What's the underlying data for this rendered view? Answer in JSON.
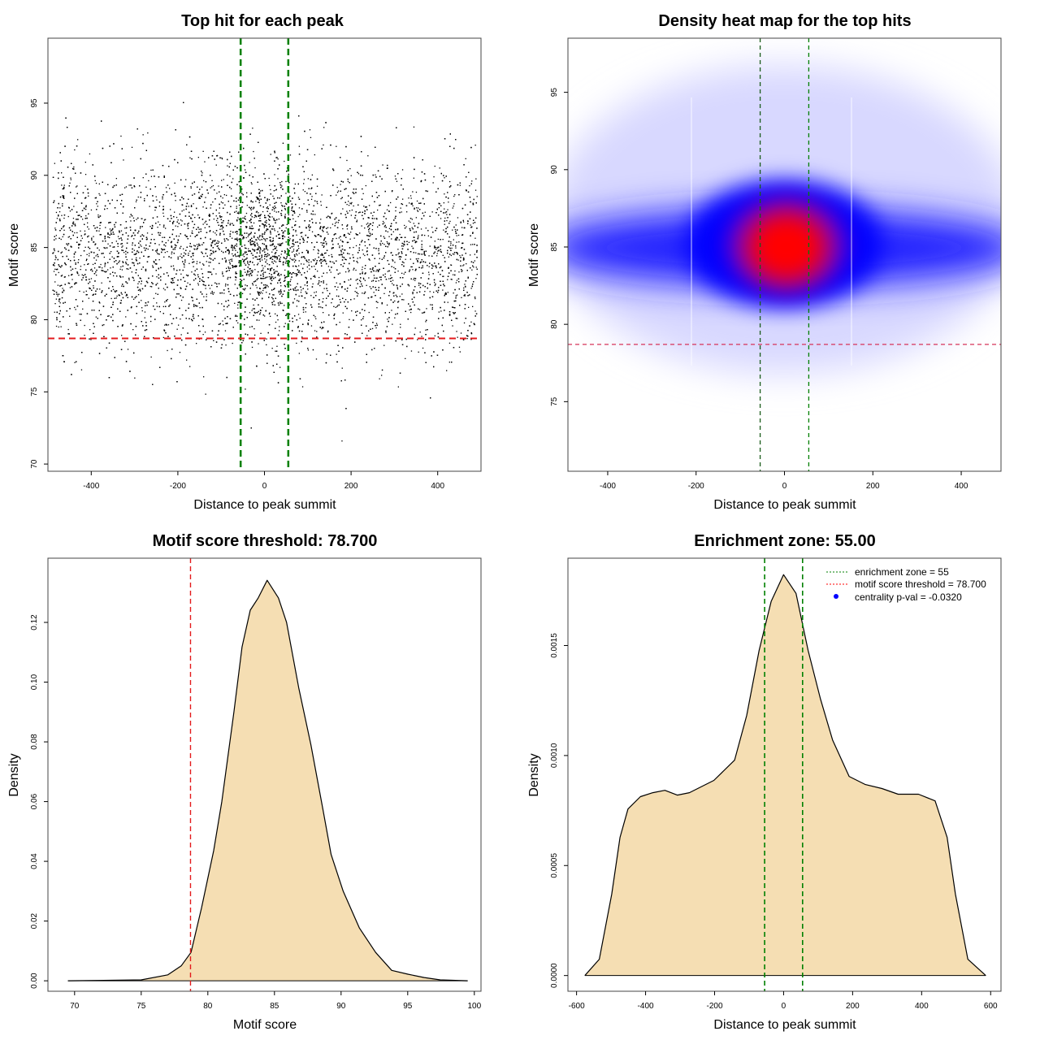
{
  "chart_data": [
    {
      "type": "scatter",
      "title": "Top hit for each peak",
      "xlabel": "Distance to peak summit",
      "ylabel": "Motif score",
      "xlim": [
        -500,
        500
      ],
      "ylim": [
        69.5,
        99.5
      ],
      "xticks": [
        -400,
        -200,
        0,
        200,
        400
      ],
      "yticks": [
        70,
        75,
        80,
        85,
        90,
        95
      ],
      "points_summary": {
        "approx_count": 20000,
        "x_range": [
          -490,
          490
        ],
        "y_center": 84.5,
        "y_sd": 3.2,
        "central_cluster_x": [
          -100,
          100
        ]
      },
      "vlines": [
        -55,
        55
      ],
      "hline": 78.7,
      "vline_color": "#008000",
      "hline_color": "#e31a1c"
    },
    {
      "type": "heatmap",
      "title": "Density heat map for the top hits",
      "xlabel": "Distance to peak summit",
      "ylabel": "Motif score",
      "xlim": [
        -490,
        490
      ],
      "ylim": [
        70.5,
        98.5
      ],
      "xticks": [
        -400,
        -200,
        0,
        200,
        400
      ],
      "yticks": [
        75,
        80,
        85,
        90,
        95
      ],
      "peak": {
        "x": 5,
        "y": 84.8
      },
      "band_y": 84.5,
      "colors": [
        "#ffffff",
        "#0000ff",
        "#ff0000"
      ],
      "vlines": [
        -55,
        55
      ],
      "hline": 78.7
    },
    {
      "type": "area",
      "title": "Motif score threshold: 78.700",
      "xlabel": "Motif score",
      "ylabel": "Density",
      "xlim": [
        68,
        100.5
      ],
      "ylim": [
        -0.0035,
        0.1415
      ],
      "xticks": [
        70,
        75,
        80,
        85,
        90,
        95,
        100
      ],
      "yticks": [
        0.0,
        0.02,
        0.04,
        0.06,
        0.08,
        0.1,
        0.12
      ],
      "ytick_labels": [
        "0.00",
        "0.02",
        "0.04",
        "0.06",
        "0.08",
        "0.10",
        "0.12"
      ],
      "x": [
        69.5,
        75,
        77,
        78,
        78.74,
        79.53,
        80.44,
        81.05,
        81.96,
        82.57,
        83.18,
        83.78,
        84.45,
        85.3,
        85.91,
        86.82,
        87.73,
        88.64,
        89.25,
        90.16,
        91.37,
        92.59,
        93.8,
        95.01,
        96.23,
        97.44,
        99.5
      ],
      "y": [
        0,
        0.0003,
        0.002,
        0.005,
        0.0095,
        0.0245,
        0.0436,
        0.06,
        0.09,
        0.1118,
        0.1241,
        0.1282,
        0.1341,
        0.1282,
        0.12,
        0.0982,
        0.0791,
        0.0573,
        0.0423,
        0.03,
        0.0177,
        0.0095,
        0.0035,
        0.0022,
        0.0011,
        0.0003,
        0
      ],
      "fill": "#f5deb3",
      "vline": 78.7,
      "vline_color": "#e31a1c"
    },
    {
      "type": "area",
      "title": "Enrichment zone: 55.00",
      "xlabel": "Distance to peak summit",
      "ylabel": "Density",
      "xlim": [
        -625,
        630
      ],
      "ylim": [
        -7.14e-05,
        0.001897
      ],
      "xticks": [
        -600,
        -400,
        -200,
        0,
        200,
        400,
        600
      ],
      "yticks": [
        0.0,
        0.0005,
        0.001,
        0.0015
      ],
      "ytick_labels": [
        "0.0000",
        "0.0005",
        "0.0010",
        "0.0015"
      ],
      "x": [
        -576,
        -534,
        -498,
        -474,
        -451,
        -415,
        -379,
        -344,
        -308,
        -273,
        -202,
        -142,
        -107,
        -71,
        -36,
        0,
        36,
        71,
        107,
        142,
        190,
        237,
        285,
        332,
        391,
        439,
        474,
        498,
        534,
        586
      ],
      "y": [
        0,
        7.4e-05,
        0.00037,
        0.000628,
        0.000757,
        0.000813,
        0.000831,
        0.000842,
        0.00082,
        0.000831,
        0.000887,
        0.000979,
        0.001182,
        0.001478,
        0.0017,
        0.001822,
        0.001737,
        0.001478,
        0.001256,
        0.001071,
        0.000905,
        0.000868,
        0.00085,
        0.000824,
        0.000824,
        0.000794,
        0.000628,
        0.00037,
        7.4e-05,
        0
      ],
      "fill": "#f5deb3",
      "vlines": [
        -55,
        55
      ],
      "vline_color": "#008000",
      "legend_position": "top-right",
      "legend": [
        {
          "label": "enrichment zone = 55",
          "color": "#008000",
          "symbol": "dotted-line"
        },
        {
          "label": "motif score threshold = 78.700",
          "color": "#ff0000",
          "symbol": "dotted-line"
        },
        {
          "label": "centrality p-val = -0.0320",
          "color": "#0000ff",
          "symbol": "dot"
        }
      ]
    }
  ]
}
